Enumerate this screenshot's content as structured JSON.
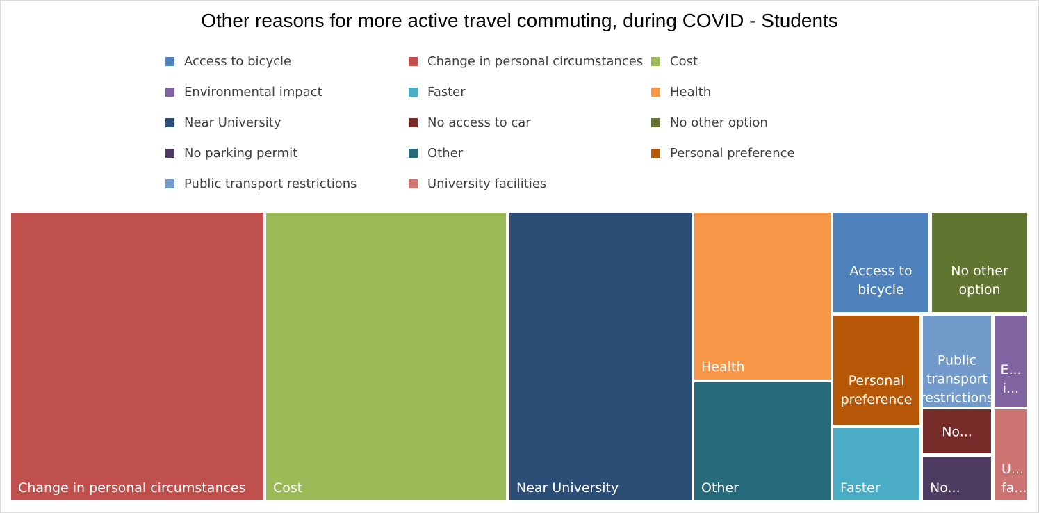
{
  "chart_data": {
    "type": "treemap",
    "title": "Other reasons for more active travel commuting, during COVID - Students",
    "legend_placement": "top",
    "grid": false,
    "series": [
      {
        "name": "Change in personal circumstances",
        "value": 18.0,
        "color": "#C0504D",
        "label": "Change in personal circumstances"
      },
      {
        "name": "Cost",
        "value": 17.2,
        "color": "#9BBB59",
        "label": "Cost"
      },
      {
        "name": "Near University",
        "value": 13.0,
        "color": "#2C4D75",
        "label": "Near University"
      },
      {
        "name": "Health",
        "value": 5.9,
        "color": "#F79646",
        "label": "Health"
      },
      {
        "name": "Other",
        "value": 4.2,
        "color": "#276A7C",
        "label": "Other"
      },
      {
        "name": "Access to bicycle",
        "value": 2.4,
        "color": "#4F81BD",
        "label": "Access to bicycle"
      },
      {
        "name": "No other option",
        "value": 2.4,
        "color": "#5F7530",
        "label": "No other option"
      },
      {
        "name": "Personal preference",
        "value": 2.3,
        "color": "#B65708",
        "label": "Personal preference"
      },
      {
        "name": "Faster",
        "value": 1.5,
        "color": "#4BACC6",
        "label": "Faster"
      },
      {
        "name": "Public transport restrictions",
        "value": 1.6,
        "color": "#729ACA",
        "label": "Public transport restrictions"
      },
      {
        "name": "No access to car",
        "value": 0.8,
        "color": "#772C2A",
        "label": "No..."
      },
      {
        "name": "No parking permit",
        "value": 0.8,
        "color": "#4D3B62",
        "label": "No..."
      },
      {
        "name": "Environmental impact",
        "value": 0.6,
        "color": "#8064A2",
        "label": "E... i..."
      },
      {
        "name": "University facilities",
        "value": 0.6,
        "color": "#CD7371",
        "label": "U... fa..."
      }
    ],
    "legend": [
      {
        "name": "Access to bicycle",
        "color": "#4F81BD"
      },
      {
        "name": "Change in personal circumstances",
        "color": "#C0504D"
      },
      {
        "name": "Cost",
        "color": "#9BBB59"
      },
      {
        "name": "Environmental impact",
        "color": "#8064A2"
      },
      {
        "name": "Faster",
        "color": "#4BACC6"
      },
      {
        "name": "Health",
        "color": "#F79646"
      },
      {
        "name": "Near University",
        "color": "#2C4D75"
      },
      {
        "name": "No access to car",
        "color": "#772C2A"
      },
      {
        "name": "No other option",
        "color": "#5F7530"
      },
      {
        "name": "No parking permit",
        "color": "#4D3B62"
      },
      {
        "name": "Other",
        "color": "#276A7C"
      },
      {
        "name": "Personal preference",
        "color": "#B65708"
      },
      {
        "name": "Public transport restrictions",
        "color": "#729ACA"
      },
      {
        "name": "University facilities",
        "color": "#CD7371"
      }
    ]
  }
}
